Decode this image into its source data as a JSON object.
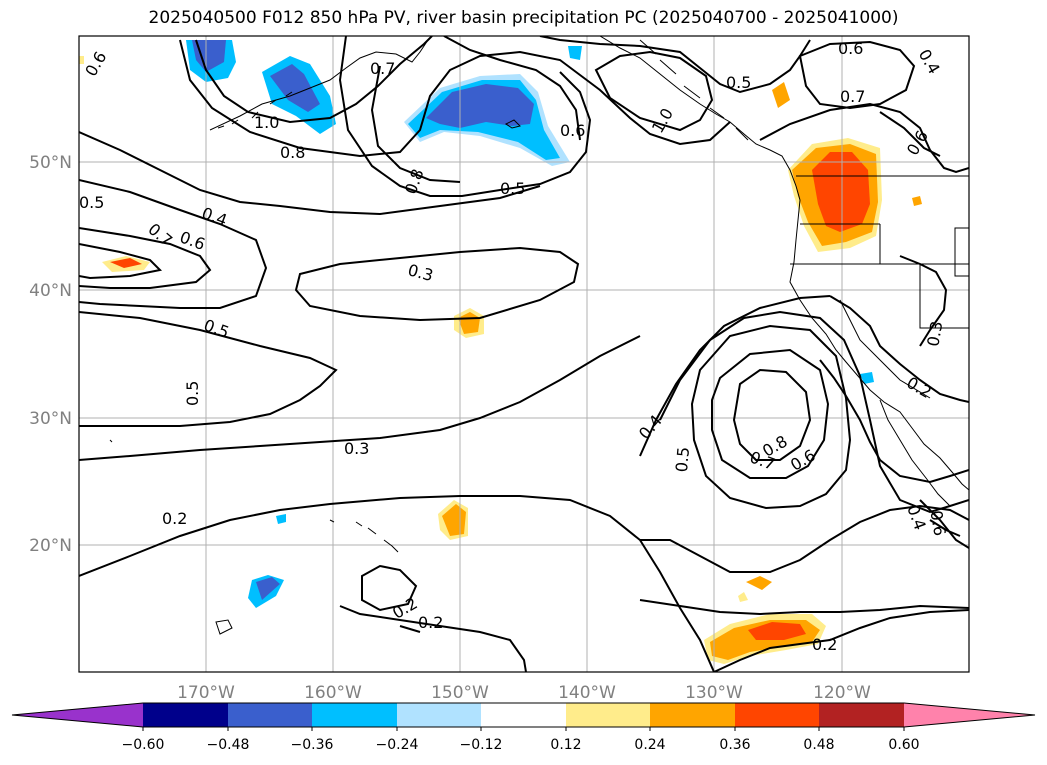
{
  "title": "2025040500 F012 850 hPa PV, river basin precipitation PC (2025040700 - 2025041000)",
  "longitude_labels": [
    "170°W",
    "160°W",
    "150°W",
    "140°W",
    "130°W",
    "120°W"
  ],
  "latitude_labels": [
    "50°N",
    "40°N",
    "30°N",
    "20°N"
  ],
  "contour_labels": [
    "0.6",
    "0.7",
    "1.0",
    "0.8",
    "0.8",
    "0.6",
    "1.0",
    "0.5",
    "0.5",
    "0.6",
    "0.7",
    "0.6",
    "0.4",
    "0.5",
    "0.4",
    "0.7",
    "0.6",
    "0.3",
    "0.5",
    "0.5",
    "0.3",
    "0.4",
    "0.5",
    "0.8",
    "0.7",
    "0.6",
    "0.3",
    "0.2",
    "0.2",
    "0.2",
    "0.2",
    "0.2",
    "0.4",
    "0.6"
  ],
  "colorbar": {
    "tick_labels": [
      "−0.60",
      "−0.48",
      "−0.36",
      "−0.24",
      "−0.12",
      "0.12",
      "0.24",
      "0.36",
      "0.48",
      "0.60"
    ],
    "colors": [
      "#9932cc",
      "#00008b",
      "#3a5fcd",
      "#00bfff",
      "#b0e2ff",
      "#ffffff",
      "#ffec8b",
      "#ffa500",
      "#ff4500",
      "#b22222",
      "#ff82ab"
    ]
  },
  "colors": {
    "pos_light": "#ffec8b",
    "pos_mid": "#ffa500",
    "pos_high": "#ff4500",
    "neg_light": "#b0e2ff",
    "neg_mid": "#00bfff",
    "neg_high": "#3a5fcd",
    "grid": "#b0b0b0",
    "contour": "#000000"
  }
}
